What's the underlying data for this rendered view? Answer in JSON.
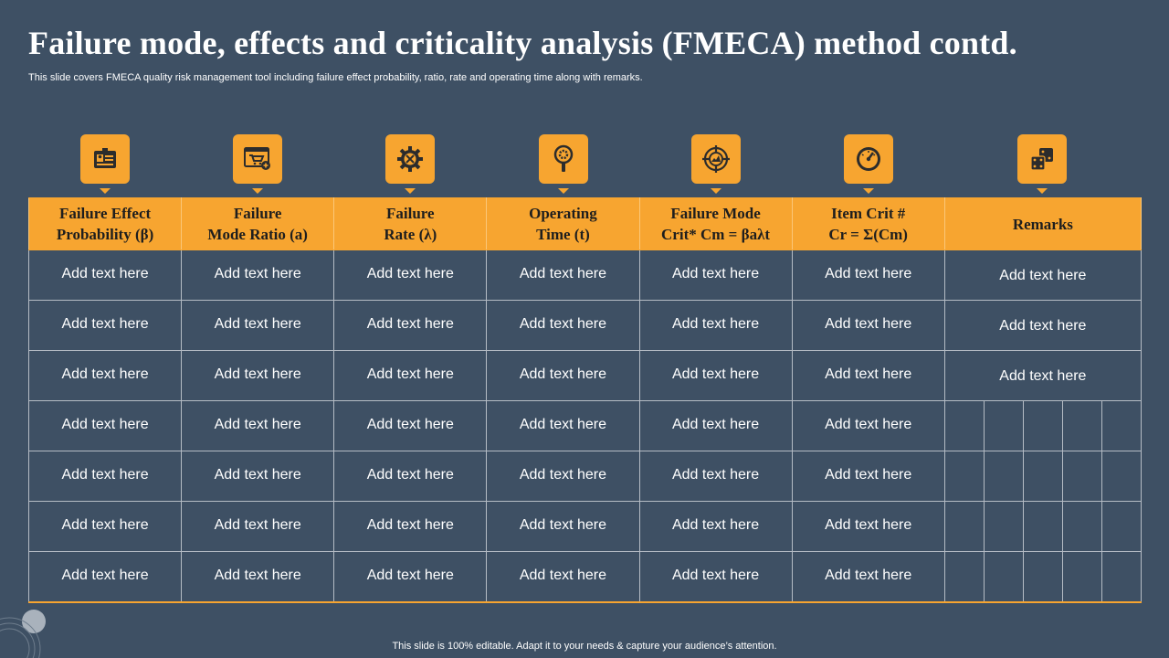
{
  "title": "Failure mode, effects and criticality analysis (FMECA) method contd.",
  "subtitle": "This slide covers FMECA  quality risk management tool including failure effect probability, ratio, rate and operating time along with remarks.",
  "accent_color": "#f7a530",
  "background_color": "#3e5064",
  "icons": [
    "id-card-icon",
    "cart-screen-icon",
    "gear-tools-icon",
    "magnifier-gear-icon",
    "target-crosshair-icon",
    "gauge-icon",
    "dice-icon"
  ],
  "table": {
    "headers": [
      {
        "line1": "Failure Effect",
        "line2": "Probability (β)"
      },
      {
        "line1": "Failure",
        "line2": "Mode Ratio (a)"
      },
      {
        "line1": "Failure",
        "line2": "Rate (λ)"
      },
      {
        "line1": "Operating",
        "line2": "Time (t)"
      },
      {
        "line1": "Failure Mode",
        "line2": "Crit* Cm = βaλt"
      },
      {
        "line1": "Item Crit #",
        "line2": "Cr = Σ(Cm)"
      },
      {
        "line1": "Remarks",
        "line2": ""
      }
    ],
    "rows": [
      [
        "Add text here",
        "Add text here",
        "Add text here",
        "Add text here",
        "Add text here",
        "Add text here",
        "Add text here"
      ],
      [
        "Add text here",
        "Add text here",
        "Add text here",
        "Add text here",
        "Add text here",
        "Add text here",
        "Add text here"
      ],
      [
        "Add text here",
        "Add text here",
        "Add text here",
        "Add text here",
        "Add text here",
        "Add text here",
        "Add text here"
      ],
      [
        "Add text here",
        "Add text here",
        "Add text here",
        "Add text here",
        "Add text here",
        "Add text here"
      ],
      [
        "Add text here",
        "Add text here",
        "Add text here",
        "Add text here",
        "Add text here",
        "Add text here"
      ],
      [
        "Add text here",
        "Add text here",
        "Add text here",
        "Add text here",
        "Add text here",
        "Add text here"
      ],
      [
        "Add text here",
        "Add text here",
        "Add text here",
        "Add text here",
        "Add text here",
        "Add text here"
      ]
    ]
  },
  "footer": "This slide is 100% editable. Adapt it to your needs & capture your audience’s attention."
}
